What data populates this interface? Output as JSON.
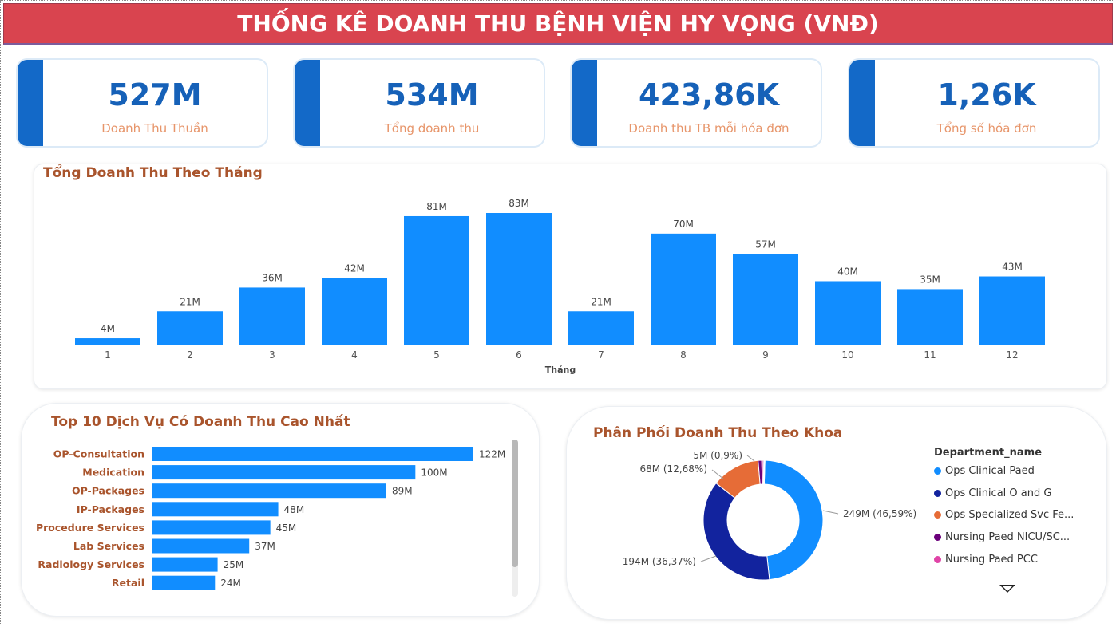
{
  "header": {
    "title": "THỐNG KÊ DOANH THU BỆNH VIỆN HY VỌNG (VNĐ)"
  },
  "kpis": [
    {
      "value": "527M",
      "label": "Doanh Thu Thuần"
    },
    {
      "value": "534M",
      "label": "Tổng doanh thu"
    },
    {
      "value": "423,86K",
      "label": "Doanh thu TB mỗi hóa đơn"
    },
    {
      "value": "1,26K",
      "label": "Tổng số hóa đơn"
    }
  ],
  "colors": {
    "bar": "#118dff",
    "accent_stripe": "#1369c8",
    "kpi_value": "#1661b8",
    "kpi_label": "#e7956a",
    "chart_title": "#a9542c",
    "header_bg": "#d9444f"
  },
  "monthly_chart": {
    "title": "Tổng Doanh Thu Theo Tháng",
    "chart_data": {
      "type": "bar",
      "categories": [
        "1",
        "2",
        "3",
        "4",
        "5",
        "6",
        "7",
        "8",
        "9",
        "10",
        "11",
        "12"
      ],
      "values": [
        4,
        21,
        36,
        42,
        81,
        83,
        21,
        70,
        57,
        40,
        35,
        43
      ],
      "data_labels": [
        "4M",
        "21M",
        "36M",
        "42M",
        "81M",
        "83M",
        "21M",
        "70M",
        "57M",
        "40M",
        "35M",
        "43M"
      ],
      "xlabel": "Tháng",
      "ylabel": "",
      "ylim": [
        0,
        83
      ],
      "grid": false
    }
  },
  "services_chart": {
    "title": "Top 10 Dịch Vụ Có Doanh Thu Cao Nhất",
    "chart_data": {
      "type": "bar",
      "orientation": "horizontal",
      "categories": [
        "OP-Consultation",
        "Medication",
        "OP-Packages",
        "IP-Packages",
        "Procedure Services",
        "Lab Services",
        "Radiology Services",
        "Retail"
      ],
      "values": [
        122,
        100,
        89,
        48,
        45,
        37,
        25,
        24
      ],
      "data_labels": [
        "122M",
        "100M",
        "89M",
        "48M",
        "45M",
        "37M",
        "25M",
        "24M"
      ],
      "xlim": [
        0,
        122
      ],
      "grid": false
    }
  },
  "department_chart": {
    "title": "Phân Phối Doanh Thu Theo Khoa",
    "legend_title": "Department_name",
    "chart_data": {
      "type": "pie",
      "donut": true,
      "values": [
        249,
        194,
        68,
        5,
        2,
        1.5,
        1
      ],
      "colors": [
        "#118dff",
        "#12239e",
        "#e66c37",
        "#6b007b",
        "#e044a7",
        "#744ec2",
        "#d9b300"
      ],
      "slice_labels": [
        "249M (46,59%)",
        "194M (36,37%)",
        "68M (12,68%)",
        "5M (0,9%)",
        "",
        "",
        ""
      ],
      "legend": [
        {
          "label": "Ops Clinical Paed",
          "color": "#118dff"
        },
        {
          "label": "Ops Clinical O and G",
          "color": "#12239e"
        },
        {
          "label": "Ops Specialized Svc Fe...",
          "color": "#e66c37"
        },
        {
          "label": "Nursing Paed NICU/SC...",
          "color": "#6b007b"
        },
        {
          "label": "Nursing Paed PCC",
          "color": "#e044a7"
        }
      ],
      "legend_position": "right"
    }
  }
}
